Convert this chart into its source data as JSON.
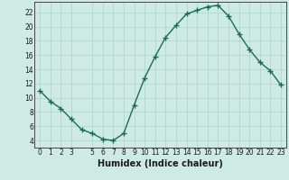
{
  "x": [
    0,
    1,
    2,
    3,
    4,
    5,
    6,
    7,
    8,
    9,
    10,
    11,
    12,
    13,
    14,
    15,
    16,
    17,
    18,
    19,
    20,
    21,
    22,
    23
  ],
  "y": [
    11,
    9.5,
    8.5,
    7,
    5.5,
    5,
    4.2,
    4,
    5,
    9,
    12.8,
    15.8,
    18.5,
    20.2,
    21.8,
    22.3,
    22.8,
    23.0,
    21.5,
    19,
    16.8,
    15,
    13.8,
    11.8
  ],
  "line_color": "#1a6b5a",
  "marker": "+",
  "marker_size": 4,
  "marker_linewidth": 1.0,
  "bg_color": "#ceeae4",
  "grid_color": "#aad4cc",
  "xlabel": "Humidex (Indice chaleur)",
  "xlim": [
    -0.5,
    23.5
  ],
  "ylim": [
    3.0,
    23.5
  ],
  "yticks": [
    4,
    6,
    8,
    10,
    12,
    14,
    16,
    18,
    20,
    22
  ],
  "xticks": [
    0,
    1,
    2,
    3,
    5,
    6,
    7,
    8,
    9,
    10,
    11,
    12,
    13,
    14,
    15,
    16,
    17,
    18,
    19,
    20,
    21,
    22,
    23
  ],
  "tick_label_size": 5.5,
  "xlabel_size": 7.0,
  "line_width": 1.0
}
